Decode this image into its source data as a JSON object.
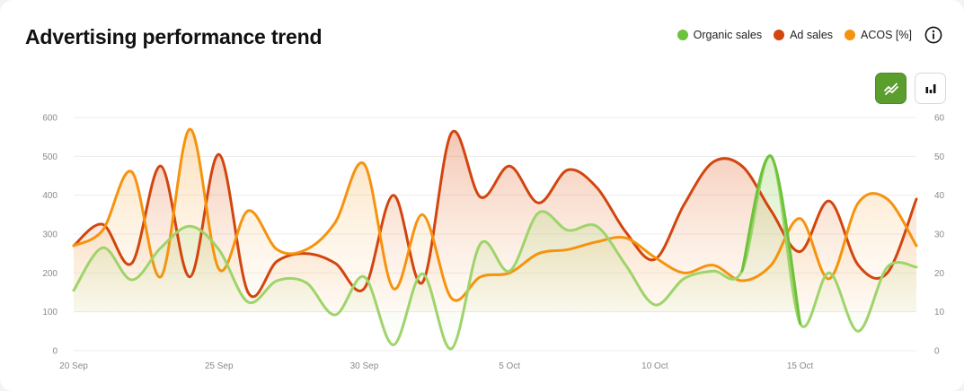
{
  "header": {
    "title": "Advertising performance trend"
  },
  "legend": [
    {
      "label": "Organic sales",
      "color": "#6cc23a"
    },
    {
      "label": "Ad sales",
      "color": "#d2450e"
    },
    {
      "label": "ACOS [%]",
      "color": "#f6930e"
    }
  ],
  "icons": {
    "info": "info-circle-icon",
    "line_view": "line-chart-icon",
    "bar_view": "bar-chart-icon"
  },
  "colors": {
    "organic": "#6cc23a",
    "organic_light": "#9ed46a",
    "ad": "#d2450e",
    "acos": "#f6930e",
    "active_toggle": "#5a9e2e"
  },
  "chart_data": {
    "type": "line",
    "title": "Advertising performance trend",
    "x": [
      "20 Sep",
      "21 Sep",
      "22 Sep",
      "23 Sep",
      "24 Sep",
      "25 Sep",
      "26 Sep",
      "27 Sep",
      "28 Sep",
      "29 Sep",
      "30 Sep",
      "1 Oct",
      "2 Oct",
      "3 Oct",
      "4 Oct",
      "5 Oct",
      "6 Oct",
      "7 Oct",
      "8 Oct",
      "9 Oct",
      "10 Oct",
      "11 Oct",
      "12 Oct",
      "13 Oct",
      "14 Oct",
      "15 Oct",
      "16 Oct",
      "17 Oct",
      "18 Oct",
      "19 Oct"
    ],
    "x_tick_labels": [
      "20 Sep",
      "25 Sep",
      "30 Sep",
      "5 Oct",
      "10 Oct",
      "15 Oct"
    ],
    "y_left": {
      "ticks": [
        0,
        100,
        200,
        300,
        400,
        500,
        600
      ],
      "lim": [
        0,
        600
      ]
    },
    "y_right": {
      "ticks": [
        0,
        10,
        20,
        30,
        40,
        50,
        60
      ],
      "lim": [
        0,
        60
      ]
    },
    "grid": true,
    "legend_position": "top-right",
    "series": [
      {
        "name": "Organic sales",
        "axis": "left",
        "values": [
          155,
          265,
          182,
          265,
          320,
          260,
          125,
          180,
          175,
          92,
          190,
          15,
          198,
          5,
          275,
          205,
          355,
          310,
          320,
          220,
          118,
          185,
          205,
          205,
          500,
          70,
          200,
          50,
          215,
          215
        ]
      },
      {
        "name": "Ad sales",
        "axis": "left",
        "values": [
          270,
          325,
          225,
          475,
          190,
          505,
          150,
          230,
          250,
          225,
          160,
          400,
          175,
          560,
          395,
          475,
          380,
          465,
          420,
          305,
          235,
          375,
          485,
          475,
          360,
          255,
          385,
          220,
          200,
          390
        ]
      },
      {
        "name": "ACOS [%]",
        "axis": "right",
        "values": [
          27,
          31,
          46,
          19,
          57,
          21,
          36,
          26,
          26,
          33,
          48,
          16,
          35,
          13.5,
          19,
          20,
          25,
          26,
          28,
          29,
          24,
          20,
          22,
          18,
          22,
          34,
          18.5,
          38,
          39,
          27
        ]
      }
    ]
  }
}
